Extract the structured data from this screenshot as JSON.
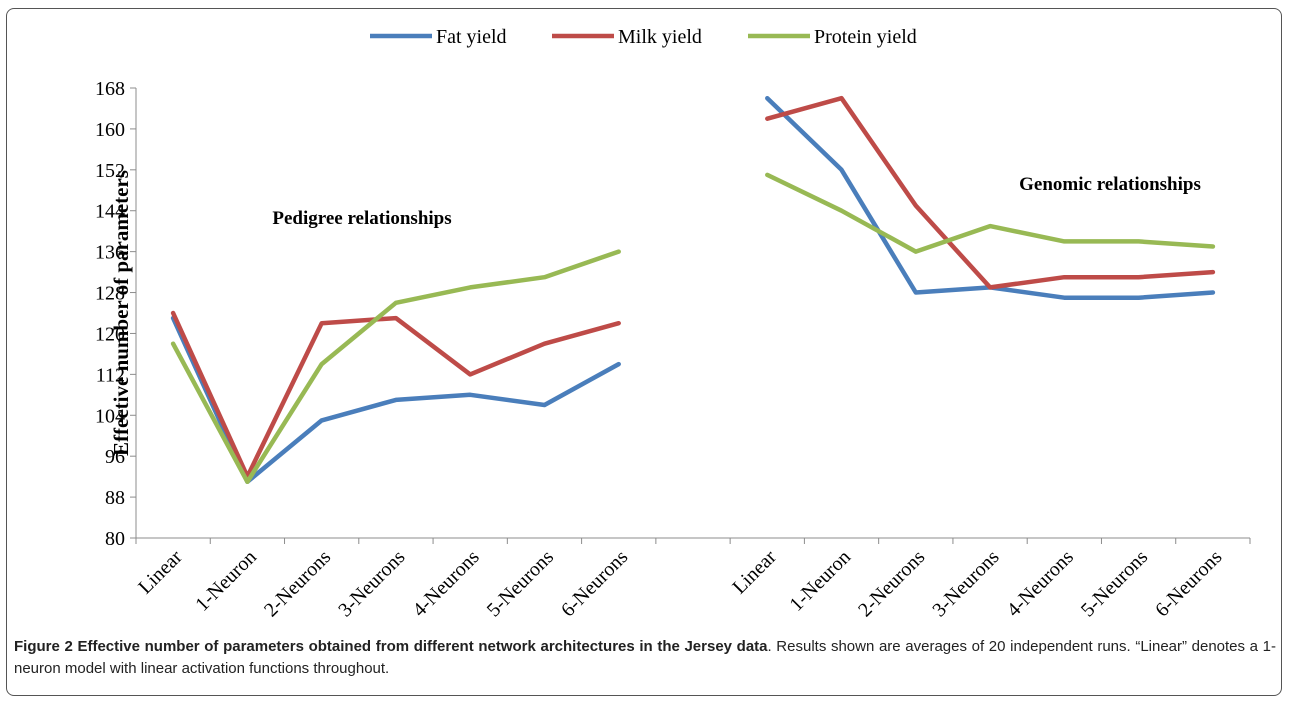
{
  "chart_data": {
    "type": "line",
    "ylabel": "Effective  number  of  parameters",
    "ylim": [
      80,
      168
    ],
    "yticks": [
      80,
      88,
      96,
      104,
      112,
      120,
      128,
      136,
      144,
      152,
      160,
      168
    ],
    "legend_position": "top-center",
    "categories": [
      "Linear",
      "1-Neuron",
      "2-Neurons",
      "3-Neurons",
      "4-Neurons",
      "5-Neurons",
      "6-Neurons",
      "",
      "Linear",
      "1-Neuron",
      "2-Neurons",
      "3-Neurons",
      "4-Neurons",
      "5-Neurons",
      "6-Neurons"
    ],
    "annotations": [
      {
        "text": "Pedigree relationships",
        "group": "pedigree"
      },
      {
        "text": "Genomic relationships",
        "group": "genomic"
      }
    ],
    "series": [
      {
        "name": "Fat yield",
        "color": "#4a7ebb",
        "pedigree": [
          123,
          91,
          103,
          107,
          108,
          106,
          114
        ],
        "genomic": [
          166,
          152,
          128,
          129,
          127,
          127,
          128
        ]
      },
      {
        "name": "Milk yield",
        "color": "#be4b48",
        "pedigree": [
          124,
          92,
          122,
          123,
          112,
          118,
          122
        ],
        "genomic": [
          162,
          166,
          145,
          129,
          131,
          131,
          132
        ]
      },
      {
        "name": "Protein yield",
        "color": "#98b954",
        "pedigree": [
          118,
          91,
          114,
          126,
          129,
          131,
          136
        ],
        "genomic": [
          151,
          144,
          136,
          141,
          138,
          138,
          137
        ]
      }
    ]
  },
  "caption": {
    "title": "Figure 2 Effective number of parameters obtained from different network architectures in the Jersey data",
    "text": ". Results shown are averages of 20 independent runs. “Linear” denotes a 1-neuron model with linear activation functions throughout."
  }
}
